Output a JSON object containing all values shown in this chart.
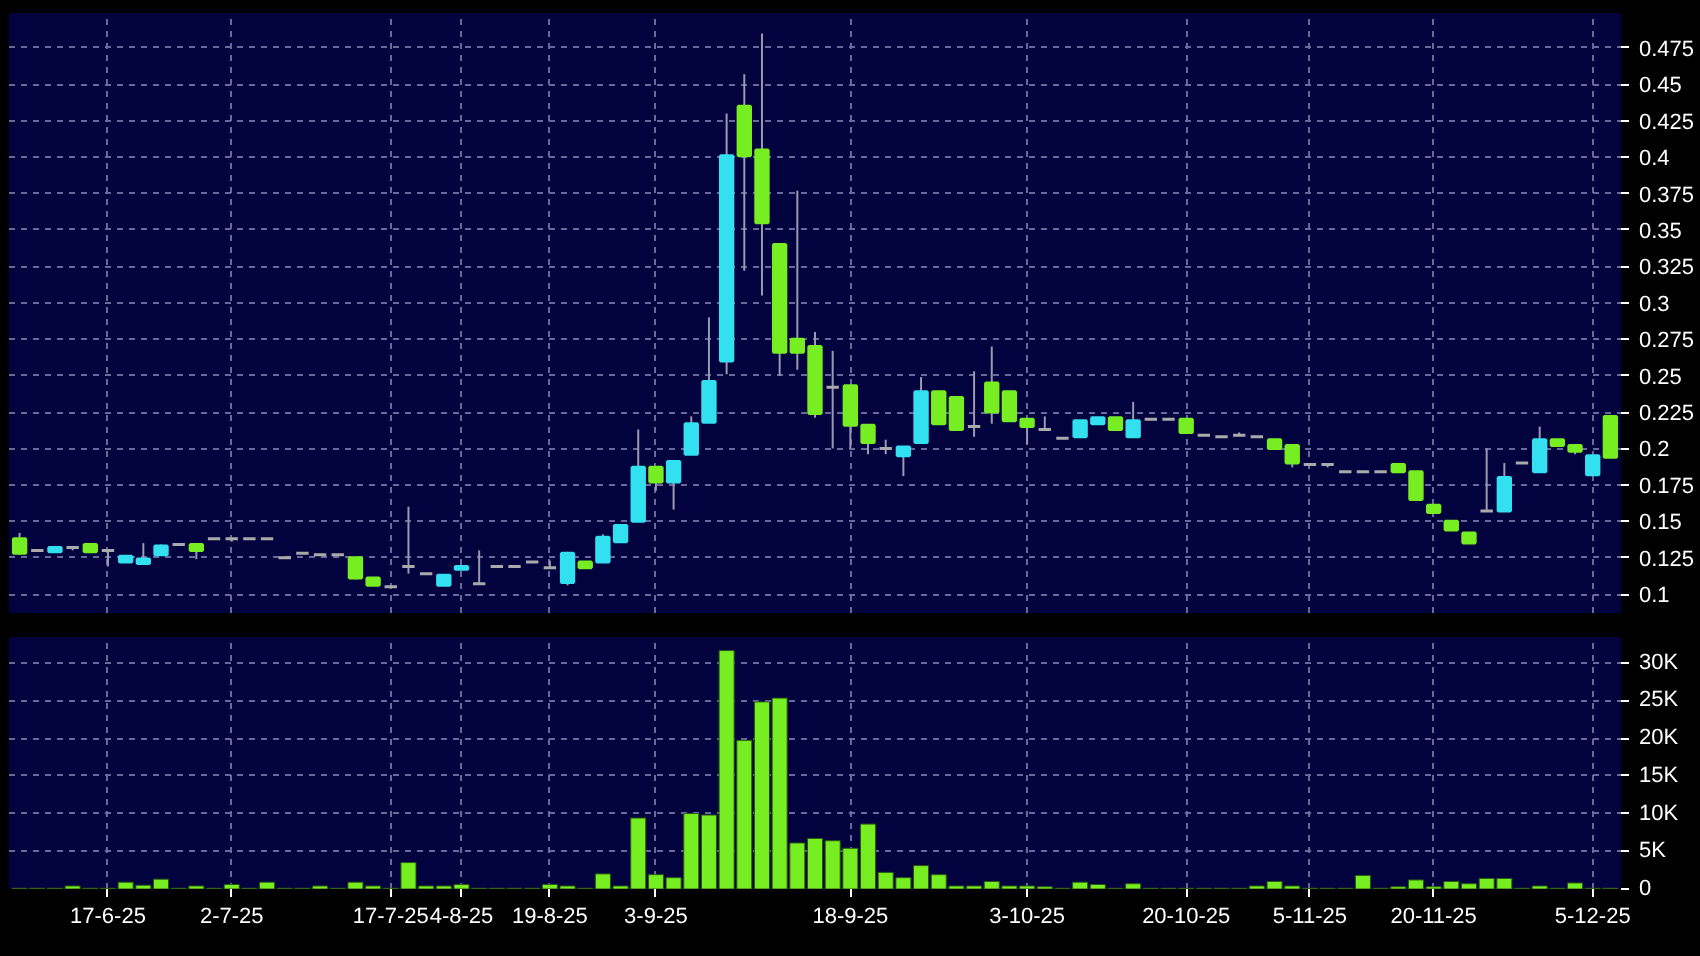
{
  "chart_data": [
    {
      "type": "candlestick",
      "categories": [
        null,
        null,
        null,
        null,
        null,
        null,
        null,
        null,
        null,
        null,
        null,
        null,
        null,
        null,
        null,
        null,
        null,
        null,
        null,
        null,
        null,
        null,
        null,
        null,
        null,
        null,
        null,
        null,
        null,
        null,
        null,
        null,
        null,
        null,
        null,
        null,
        null,
        null,
        null,
        null,
        null,
        null,
        null,
        null,
        null,
        null,
        null,
        null,
        null,
        null,
        null,
        null,
        null,
        null,
        null,
        null,
        null,
        null,
        null,
        null,
        null,
        null,
        null,
        null,
        null,
        null,
        null,
        null,
        null,
        null,
        null,
        null,
        null,
        null,
        null,
        null,
        null,
        null,
        null,
        null,
        null,
        null,
        null,
        null,
        null,
        null,
        null,
        null,
        null,
        null,
        null
      ],
      "ohlc": [
        [
          0.138,
          0.142,
          0.127,
          0.128
        ],
        [
          0.13,
          0.13,
          0.13,
          0.13
        ],
        [
          0.129,
          0.132,
          0.129,
          0.132
        ],
        [
          0.132,
          0.132,
          0.13,
          0.132
        ],
        [
          0.134,
          0.134,
          0.129,
          0.129
        ],
        [
          0.13,
          0.13,
          0.119,
          0.13
        ],
        [
          0.122,
          0.126,
          0.122,
          0.126
        ],
        [
          0.121,
          0.135,
          0.121,
          0.124
        ],
        [
          0.127,
          0.134,
          0.127,
          0.133
        ],
        [
          0.134,
          0.134,
          0.134,
          0.134
        ],
        [
          0.134,
          0.134,
          0.124,
          0.13
        ],
        [
          0.138,
          0.138,
          0.138,
          0.138
        ],
        [
          0.138,
          0.138,
          0.136,
          0.138
        ],
        [
          0.138,
          0.138,
          0.138,
          0.138
        ],
        [
          0.138,
          0.138,
          0.138,
          0.138
        ],
        [
          0.125,
          0.125,
          0.125,
          0.125
        ],
        [
          0.128,
          0.128,
          0.128,
          0.128
        ],
        [
          0.127,
          0.127,
          0.127,
          0.127
        ],
        [
          0.127,
          0.127,
          0.127,
          0.127
        ],
        [
          0.125,
          0.125,
          0.11,
          0.111
        ],
        [
          0.111,
          0.111,
          0.106,
          0.106
        ],
        [
          0.105,
          0.105,
          0.105,
          0.105
        ],
        [
          0.119,
          0.16,
          0.114,
          0.119
        ],
        [
          0.114,
          0.114,
          0.114,
          0.114
        ],
        [
          0.106,
          0.113,
          0.106,
          0.113
        ],
        [
          0.117,
          0.119,
          0.117,
          0.119
        ],
        [
          0.107,
          0.13,
          0.107,
          0.107
        ],
        [
          0.119,
          0.119,
          0.119,
          0.119
        ],
        [
          0.119,
          0.119,
          0.119,
          0.119
        ],
        [
          0.122,
          0.122,
          0.122,
          0.122
        ],
        [
          0.118,
          0.123,
          0.118,
          0.118
        ],
        [
          0.108,
          0.129,
          0.106,
          0.128
        ],
        [
          0.122,
          0.122,
          0.118,
          0.118
        ],
        [
          0.122,
          0.141,
          0.122,
          0.139
        ],
        [
          0.136,
          0.147,
          0.136,
          0.147
        ],
        [
          0.15,
          0.213,
          0.15,
          0.187
        ],
        [
          0.187,
          0.187,
          0.171,
          0.177
        ],
        [
          0.177,
          0.191,
          0.158,
          0.191
        ],
        [
          0.196,
          0.222,
          0.196,
          0.217
        ],
        [
          0.218,
          0.29,
          0.218,
          0.246
        ],
        [
          0.26,
          0.43,
          0.251,
          0.401
        ],
        [
          0.435,
          0.457,
          0.322,
          0.401
        ],
        [
          0.405,
          0.485,
          0.305,
          0.355
        ],
        [
          0.34,
          0.34,
          0.25,
          0.266
        ],
        [
          0.275,
          0.377,
          0.254,
          0.266
        ],
        [
          0.27,
          0.28,
          0.221,
          0.224
        ],
        [
          0.242,
          0.267,
          0.2,
          0.242
        ],
        [
          0.243,
          0.243,
          0.2,
          0.216
        ],
        [
          0.216,
          0.216,
          0.196,
          0.204
        ],
        [
          0.2,
          0.206,
          0.196,
          0.2
        ],
        [
          0.195,
          0.201,
          0.181,
          0.201
        ],
        [
          0.204,
          0.249,
          0.204,
          0.239
        ],
        [
          0.239,
          0.239,
          0.217,
          0.217
        ],
        [
          0.235,
          0.235,
          0.213,
          0.213
        ],
        [
          0.215,
          0.253,
          0.208,
          0.215
        ],
        [
          0.245,
          0.27,
          0.217,
          0.225
        ],
        [
          0.239,
          0.239,
          0.219,
          0.219
        ],
        [
          0.22,
          0.22,
          0.203,
          0.215
        ],
        [
          0.213,
          0.222,
          0.213,
          0.213
        ],
        [
          0.207,
          0.207,
          0.207,
          0.207
        ],
        [
          0.208,
          0.219,
          0.208,
          0.219
        ],
        [
          0.217,
          0.221,
          0.217,
          0.221
        ],
        [
          0.221,
          0.221,
          0.213,
          0.213
        ],
        [
          0.208,
          0.232,
          0.208,
          0.219
        ],
        [
          0.22,
          0.22,
          0.22,
          0.22
        ],
        [
          0.22,
          0.22,
          0.22,
          0.22
        ],
        [
          0.22,
          0.22,
          0.211,
          0.211
        ],
        [
          0.209,
          0.209,
          0.209,
          0.209
        ],
        [
          0.208,
          0.208,
          0.208,
          0.208
        ],
        [
          0.209,
          0.211,
          0.209,
          0.209
        ],
        [
          0.208,
          0.208,
          0.208,
          0.208
        ],
        [
          0.206,
          0.206,
          0.2,
          0.2
        ],
        [
          0.202,
          0.202,
          0.187,
          0.19
        ],
        [
          0.189,
          0.189,
          0.189,
          0.189
        ],
        [
          0.189,
          0.189,
          0.187,
          0.189
        ],
        [
          0.184,
          0.184,
          0.184,
          0.184
        ],
        [
          0.184,
          0.184,
          0.184,
          0.184
        ],
        [
          0.184,
          0.184,
          0.184,
          0.184
        ],
        [
          0.189,
          0.189,
          0.184,
          0.184
        ],
        [
          0.184,
          0.184,
          0.165,
          0.165
        ],
        [
          0.161,
          0.161,
          0.156,
          0.156
        ],
        [
          0.15,
          0.15,
          0.144,
          0.144
        ],
        [
          0.142,
          0.142,
          0.135,
          0.135
        ],
        [
          0.157,
          0.2,
          0.157,
          0.157
        ],
        [
          0.157,
          0.19,
          0.157,
          0.18
        ],
        [
          0.19,
          0.19,
          0.19,
          0.19
        ],
        [
          0.184,
          0.215,
          0.184,
          0.206
        ],
        [
          0.206,
          0.206,
          0.202,
          0.202
        ],
        [
          0.202,
          0.202,
          0.196,
          0.198
        ],
        [
          0.182,
          0.195,
          0.182,
          0.195
        ],
        [
          0.222,
          0.223,
          0.194,
          0.194
        ]
      ],
      "colors": [
        "#77ee22",
        "#aaaaaa",
        "#33e0f0",
        "#aaaaaa",
        "#77ee22",
        "#aaaaaa",
        "#33e0f0",
        "#33e0f0",
        "#33e0f0",
        "#aaaaaa",
        "#77ee22",
        "#aaaaaa",
        "#aaaaaa",
        "#aaaaaa",
        "#aaaaaa",
        "#aaaaaa",
        "#aaaaaa",
        "#aaaaaa",
        "#aaaaaa",
        "#77ee22",
        "#77ee22",
        "#aaaaaa",
        "#aaaaaa",
        "#aaaaaa",
        "#33e0f0",
        "#33e0f0",
        "#aaaaaa",
        "#aaaaaa",
        "#aaaaaa",
        "#aaaaaa",
        "#aaaaaa",
        "#33e0f0",
        "#77ee22",
        "#33e0f0",
        "#33e0f0",
        "#33e0f0",
        "#77ee22",
        "#33e0f0",
        "#33e0f0",
        "#33e0f0",
        "#33e0f0",
        "#77ee22",
        "#77ee22",
        "#77ee22",
        "#77ee22",
        "#77ee22",
        "#aaaaaa",
        "#77ee22",
        "#77ee22",
        "#aaaaaa",
        "#33e0f0",
        "#33e0f0",
        "#77ee22",
        "#77ee22",
        "#aaaaaa",
        "#77ee22",
        "#77ee22",
        "#77ee22",
        "#aaaaaa",
        "#aaaaaa",
        "#33e0f0",
        "#33e0f0",
        "#77ee22",
        "#33e0f0",
        "#aaaaaa",
        "#aaaaaa",
        "#77ee22",
        "#aaaaaa",
        "#aaaaaa",
        "#aaaaaa",
        "#aaaaaa",
        "#77ee22",
        "#77ee22",
        "#aaaaaa",
        "#aaaaaa",
        "#aaaaaa",
        "#aaaaaa",
        "#aaaaaa",
        "#77ee22",
        "#77ee22",
        "#77ee22",
        "#77ee22",
        "#77ee22",
        "#aaaaaa",
        "#33e0f0",
        "#aaaaaa",
        "#33e0f0",
        "#77ee22",
        "#77ee22",
        "#33e0f0",
        "#77ee22"
      ],
      "ylim": [
        0.087,
        0.499
      ],
      "yticks": [
        0.1,
        0.125,
        0.15,
        0.175,
        0.2,
        0.225,
        0.25,
        0.275,
        0.3,
        0.325,
        0.35,
        0.375,
        0.4,
        0.425,
        0.45,
        0.475
      ],
      "grid": true,
      "tick_labels": "y"
    },
    {
      "type": "bar",
      "categories": [
        null,
        null,
        null,
        null,
        null,
        "17-6-25",
        null,
        null,
        null,
        null,
        null,
        null,
        "2-7-25",
        null,
        null,
        null,
        null,
        null,
        null,
        null,
        null,
        "17-7-25",
        null,
        null,
        null,
        "4-8-25",
        null,
        null,
        null,
        null,
        "19-8-25",
        null,
        null,
        null,
        null,
        null,
        "3-9-25",
        null,
        null,
        null,
        null,
        null,
        null,
        null,
        null,
        null,
        null,
        "18-9-25",
        null,
        null,
        null,
        null,
        null,
        null,
        null,
        null,
        null,
        "3-10-25",
        null,
        null,
        null,
        null,
        null,
        null,
        null,
        null,
        "20-10-25",
        null,
        null,
        null,
        null,
        null,
        null,
        "5-11-25",
        null,
        null,
        null,
        null,
        null,
        null,
        "20-11-25",
        null,
        null,
        null,
        null,
        null,
        null,
        null,
        null,
        "5-12-25",
        null
      ],
      "values": [
        0.1,
        0.1,
        0.1,
        0.4,
        0.1,
        0.1,
        0.9,
        0.5,
        1.3,
        0.1,
        0.4,
        0.1,
        0.6,
        0.1,
        0.9,
        0.1,
        0.1,
        0.4,
        0.1,
        0.9,
        0.4,
        0.1,
        3.5,
        0.4,
        0.4,
        0.6,
        0.1,
        0.1,
        0.1,
        0.1,
        0.6,
        0.4,
        0.1,
        2.0,
        0.4,
        9.4,
        1.9,
        1.5,
        10.0,
        9.8,
        31.6,
        19.7,
        24.8,
        25.3,
        6.1,
        6.7,
        6.4,
        5.4,
        8.6,
        2.2,
        1.5,
        3.1,
        1.9,
        0.4,
        0.4,
        1.0,
        0.4,
        0.4,
        0.3,
        0.1,
        0.9,
        0.6,
        0.1,
        0.7,
        0.1,
        0.1,
        0.1,
        0.1,
        0.1,
        0.1,
        0.4,
        1.0,
        0.4,
        0.1,
        0.1,
        0.1,
        1.8,
        0.1,
        0.3,
        1.2,
        0.3,
        1.0,
        0.7,
        1.4,
        1.4,
        0.1,
        0.4,
        0.1,
        0.8,
        0.1,
        0.1
      ],
      "color": "#77ee22",
      "ylim": [
        0,
        33.4
      ],
      "yticks": [
        0,
        {
          "value": 5,
          "label": "5K"
        },
        {
          "value": 10,
          "label": "10K"
        },
        {
          "value": 15,
          "label": "15K"
        },
        {
          "value": 20,
          "label": "20K"
        },
        {
          "value": 25,
          "label": "25K"
        },
        {
          "value": 30,
          "label": "30K"
        }
      ],
      "grid": true
    }
  ]
}
